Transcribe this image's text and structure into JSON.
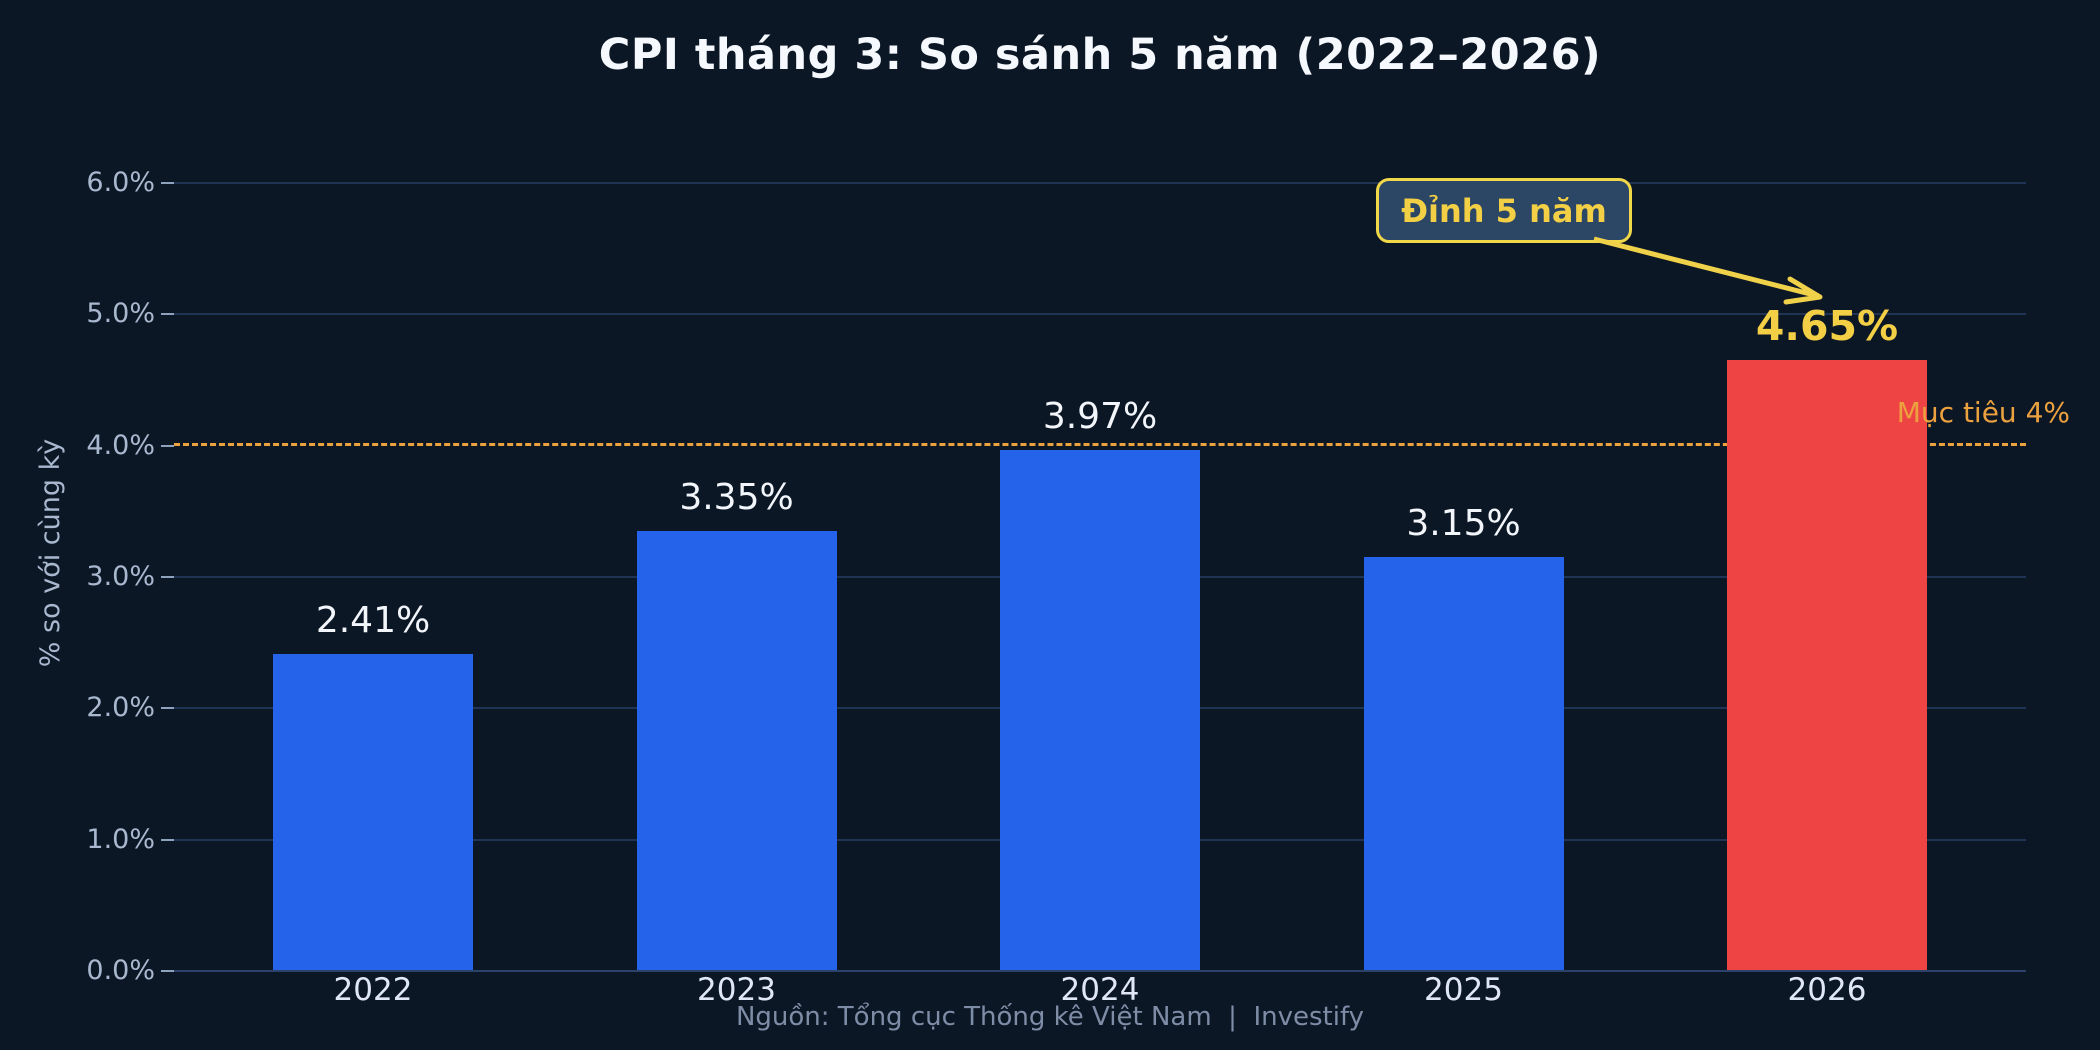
{
  "title": "CPI tháng 3: So sánh 5 năm (2022–2026)",
  "footer": "Nguồn: Tổng cục Thống kê Việt Nam  |  Investify",
  "colors": {
    "background": "#0c1726",
    "bar_blue": "#2563eb",
    "bar_red": "#ef4444",
    "highlight_yellow": "#f2cf44",
    "annotation_border": "#f0d848",
    "annotation_fill": "#2c4766",
    "target_orange": "#eca13f",
    "gridline": "#1f3354",
    "tick_text": "#a9b8cf",
    "value_text": "#f2f6fb",
    "footer_text": "#7e8ca6"
  },
  "chart_data": {
    "type": "bar",
    "title": "CPI tháng 3: So sánh 5 năm (2022–2026)",
    "xlabel": "",
    "ylabel": "% so với cùng kỳ",
    "categories": [
      "2022",
      "2023",
      "2024",
      "2025",
      "2026"
    ],
    "values": [
      2.41,
      3.35,
      3.97,
      3.15,
      4.65
    ],
    "bar_labels": [
      "2.41%",
      "3.35%",
      "3.97%",
      "3.15%",
      "4.65%"
    ],
    "bar_colors": [
      "#2563eb",
      "#2563eb",
      "#2563eb",
      "#2563eb",
      "#ef4444"
    ],
    "highlight_index": 4,
    "ylim": [
      0,
      6.5
    ],
    "yticks": [
      "0.0%",
      "1.0%",
      "2.0%",
      "3.0%",
      "4.0%",
      "5.0%",
      "6.0%"
    ],
    "ytick_values": [
      0,
      1,
      2,
      3,
      4,
      5,
      6
    ],
    "grid": true,
    "legend": null,
    "target_line": {
      "value": 4.0,
      "label": "Mục tiêu 4%",
      "style": "dashed",
      "color": "#eca13f"
    },
    "annotation": {
      "text": "Đỉnh 5 năm",
      "arrow_to_label": "4.65%",
      "arrow_color": "#f0d24a"
    },
    "source_note": "Nguồn: Tổng cục Thống kê Việt Nam  |  Investify"
  }
}
